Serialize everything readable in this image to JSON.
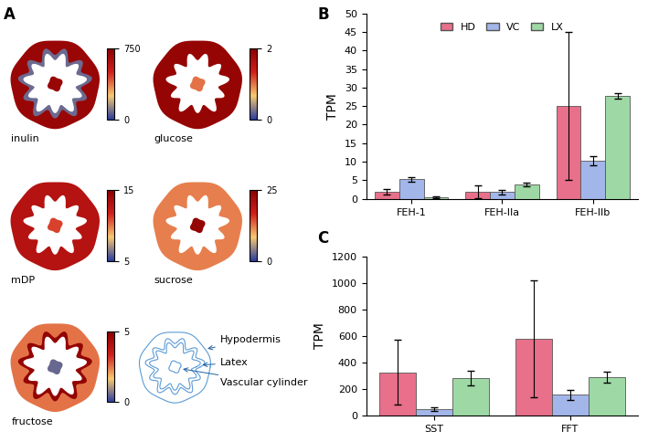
{
  "panel_labels": [
    "A",
    "B",
    "C"
  ],
  "tissue_maps": {
    "maps": [
      {
        "name": "inulin",
        "range": [
          0,
          750
        ],
        "ticks": [
          0,
          750
        ],
        "hypodermis": 700,
        "latex": 80,
        "vascular_cylinder": 700
      },
      {
        "name": "glucose",
        "range": [
          0,
          2
        ],
        "ticks": [
          0,
          2
        ],
        "hypodermis": 1.9,
        "latex": 1.9,
        "vascular_cylinder": 1.0
      },
      {
        "name": "mDP",
        "range": [
          5,
          15
        ],
        "ticks": [
          5,
          15
        ],
        "hypodermis": 13,
        "latex": 13,
        "vascular_cylinder": 11
      },
      {
        "name": "sucrose",
        "range": [
          0,
          25
        ],
        "ticks": [
          0,
          25
        ],
        "hypodermis": 12,
        "latex": 12,
        "vascular_cylinder": 24
      },
      {
        "name": "fructose",
        "range": [
          0,
          5
        ],
        "ticks": [
          0,
          5
        ],
        "hypodermis": 2.5,
        "latex": 4.8,
        "vascular_cylinder": 0.5
      }
    ],
    "schematic_labels": [
      "Hypodermis",
      "Latex",
      "Vascular cylinder"
    ]
  },
  "chart_data": [
    {
      "type": "bar",
      "categories": [
        "FEH-1",
        "FEH-IIa",
        "FEH-IIb"
      ],
      "y_label": "TPM",
      "ylim": [
        0,
        50
      ],
      "yticks": [
        0,
        5,
        10,
        15,
        20,
        25,
        30,
        35,
        40,
        45,
        50
      ],
      "legend": "upper center",
      "series": [
        {
          "name": "HD",
          "color": "#e8708a",
          "values": [
            2.0,
            2.0,
            25.0
          ],
          "errors": [
            0.7,
            1.7,
            20.0
          ]
        },
        {
          "name": "VC",
          "color": "#a3b6ea",
          "values": [
            5.3,
            1.8,
            10.2
          ],
          "errors": [
            0.6,
            0.5,
            1.2
          ]
        },
        {
          "name": "LX",
          "color": "#9ed9a5",
          "values": [
            0.5,
            4.0,
            27.8
          ],
          "errors": [
            0.2,
            0.5,
            0.7
          ]
        }
      ]
    },
    {
      "type": "bar",
      "categories": [
        "SST",
        "FFT"
      ],
      "y_label": "TPM",
      "ylim": [
        0,
        1200
      ],
      "yticks": [
        0,
        200,
        400,
        600,
        800,
        1000,
        1200
      ],
      "series": [
        {
          "name": "HD",
          "color": "#e8708a",
          "values": [
            325,
            580
          ],
          "errors": [
            245,
            440
          ]
        },
        {
          "name": "VC",
          "color": "#a3b6ea",
          "values": [
            50,
            155
          ],
          "errors": [
            15,
            35
          ]
        },
        {
          "name": "LX",
          "color": "#9ed9a5",
          "values": [
            285,
            290
          ],
          "errors": [
            55,
            40
          ]
        }
      ]
    }
  ]
}
